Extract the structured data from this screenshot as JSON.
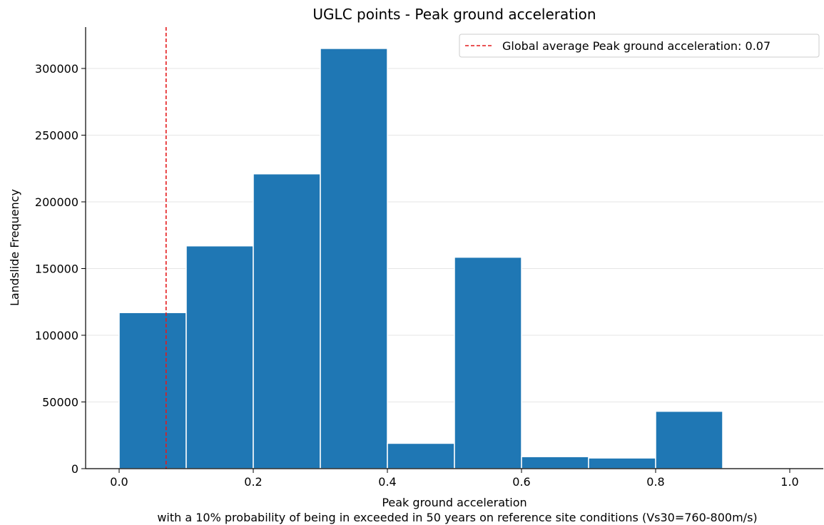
{
  "chart_data": {
    "type": "bar",
    "title": "UGLC points - Peak ground acceleration",
    "xlabel_line1": "Peak ground acceleration",
    "xlabel_line2": "with a 10% probability of being in exceeded in 50 years on reference site conditions (Vs30=760-800m/s)",
    "ylabel": "Landslide Frequency",
    "bins": [
      {
        "x0": 0.0,
        "x1": 0.1,
        "value": 117000
      },
      {
        "x0": 0.1,
        "x1": 0.2,
        "value": 167000
      },
      {
        "x0": 0.2,
        "x1": 0.3,
        "value": 221000
      },
      {
        "x0": 0.3,
        "x1": 0.4,
        "value": 315000
      },
      {
        "x0": 0.4,
        "x1": 0.5,
        "value": 19000
      },
      {
        "x0": 0.5,
        "x1": 0.6,
        "value": 158500
      },
      {
        "x0": 0.6,
        "x1": 0.7,
        "value": 9000
      },
      {
        "x0": 0.7,
        "x1": 0.8,
        "value": 8000
      },
      {
        "x0": 0.8,
        "x1": 0.9,
        "value": 43000
      },
      {
        "x0": 0.9,
        "x1": 1.0,
        "value": 0
      }
    ],
    "xlim": [
      -0.05,
      1.05
    ],
    "ylim": [
      0,
      331000
    ],
    "xticks": [
      0.0,
      0.2,
      0.4,
      0.6,
      0.8,
      1.0
    ],
    "xtick_labels": [
      "0.0",
      "0.2",
      "0.4",
      "0.6",
      "0.8",
      "1.0"
    ],
    "yticks": [
      0,
      50000,
      100000,
      150000,
      200000,
      250000,
      300000
    ],
    "ytick_labels": [
      "0",
      "50000",
      "100000",
      "150000",
      "200000",
      "250000",
      "300000"
    ],
    "grid": "horizontal",
    "legend_position": "top-right",
    "reference_line": {
      "x": 0.07,
      "label": "Global average Peak ground acceleration: 0.07",
      "color": "#e41a1c"
    },
    "bar_color": "#1f77b4"
  }
}
